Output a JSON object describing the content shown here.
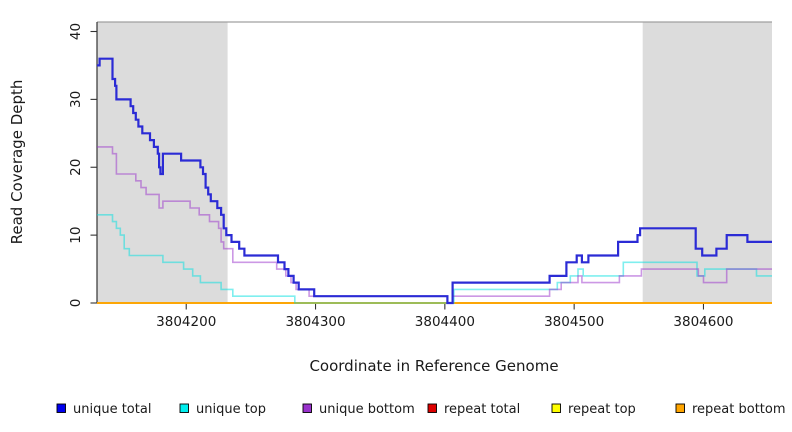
{
  "chart_data": {
    "type": "line",
    "step": true,
    "title": "",
    "xlabel": "Coordinate in Reference Genome",
    "ylabel": "Read Coverage Depth",
    "xlim": [
      3804131,
      3804653
    ],
    "ylim": [
      0,
      41.4
    ],
    "x_ticks": [
      3804200,
      3804300,
      3804400,
      3804500,
      3804600
    ],
    "y_ticks": [
      0,
      10,
      20,
      30,
      40
    ],
    "grid": false,
    "legend_position": "bottom",
    "colors": {
      "background": "#ffffff",
      "shaded_band": "#dcdcdc",
      "axis": "#333333",
      "top_border": "#8a8a8a"
    },
    "shaded_regions": [
      {
        "x0": 3804131,
        "x1": 3804232
      },
      {
        "x0": 3804553,
        "x1": 3804653
      }
    ],
    "series": [
      {
        "name": "unique total",
        "line_color": "#2b2bd5",
        "legend_color": "#0000ee",
        "line_width": 2.2,
        "opacity": 1,
        "points": [
          [
            3804131,
            35
          ],
          [
            3804133,
            36
          ],
          [
            3804143,
            33
          ],
          [
            3804145,
            32
          ],
          [
            3804146,
            30
          ],
          [
            3804157,
            29
          ],
          [
            3804159,
            28
          ],
          [
            3804161,
            27
          ],
          [
            3804163,
            26
          ],
          [
            3804166,
            25
          ],
          [
            3804172,
            24
          ],
          [
            3804175,
            23
          ],
          [
            3804178,
            22
          ],
          [
            3804179,
            20
          ],
          [
            3804180,
            19
          ],
          [
            3804182,
            22
          ],
          [
            3804196,
            21
          ],
          [
            3804211,
            20
          ],
          [
            3804213,
            19
          ],
          [
            3804215,
            17
          ],
          [
            3804217,
            16
          ],
          [
            3804219,
            15
          ],
          [
            3804224,
            14
          ],
          [
            3804227,
            13
          ],
          [
            3804229,
            11
          ],
          [
            3804231,
            10
          ],
          [
            3804235,
            9
          ],
          [
            3804241,
            8
          ],
          [
            3804245,
            7
          ],
          [
            3804271,
            6
          ],
          [
            3804276,
            5
          ],
          [
            3804279,
            4
          ],
          [
            3804283,
            3
          ],
          [
            3804287,
            2
          ],
          [
            3804299,
            1
          ],
          [
            3804402,
            0
          ],
          [
            3804406,
            3
          ],
          [
            3804481,
            4
          ],
          [
            3804494,
            6
          ],
          [
            3804502,
            7
          ],
          [
            3804506,
            6
          ],
          [
            3804511,
            7
          ],
          [
            3804534,
            9
          ],
          [
            3804549,
            10
          ],
          [
            3804551,
            11
          ],
          [
            3804594,
            8
          ],
          [
            3804599,
            7
          ],
          [
            3804610,
            8
          ],
          [
            3804618,
            10
          ],
          [
            3804634,
            9
          ],
          [
            3804653,
            9
          ]
        ]
      },
      {
        "name": "unique top",
        "line_color": "#00e0e0",
        "legend_color": "#00eeee",
        "line_width": 1.6,
        "opacity": 0.5,
        "points": [
          [
            3804131,
            13
          ],
          [
            3804143,
            12
          ],
          [
            3804146,
            11
          ],
          [
            3804149,
            10
          ],
          [
            3804152,
            8
          ],
          [
            3804156,
            7
          ],
          [
            3804182,
            6
          ],
          [
            3804198,
            5
          ],
          [
            3804205,
            4
          ],
          [
            3804211,
            3
          ],
          [
            3804227,
            2
          ],
          [
            3804236,
            1
          ],
          [
            3804284,
            0
          ],
          [
            3804407,
            2
          ],
          [
            3804487,
            3
          ],
          [
            3804497,
            4
          ],
          [
            3804503,
            5
          ],
          [
            3804507,
            4
          ],
          [
            3804538,
            6
          ],
          [
            3804595,
            4
          ],
          [
            3804601,
            5
          ],
          [
            3804641,
            4
          ],
          [
            3804653,
            4
          ]
        ]
      },
      {
        "name": "unique bottom",
        "line_color": "#9932cc",
        "legend_color": "#9932cc",
        "line_width": 1.6,
        "opacity": 0.5,
        "points": [
          [
            3804131,
            23
          ],
          [
            3804143,
            22
          ],
          [
            3804146,
            19
          ],
          [
            3804161,
            18
          ],
          [
            3804165,
            17
          ],
          [
            3804169,
            16
          ],
          [
            3804178,
            16
          ],
          [
            3804179,
            14
          ],
          [
            3804182,
            15
          ],
          [
            3804203,
            14
          ],
          [
            3804210,
            13
          ],
          [
            3804218,
            12
          ],
          [
            3804225,
            11
          ],
          [
            3804227,
            9
          ],
          [
            3804229,
            8
          ],
          [
            3804236,
            6
          ],
          [
            3804270,
            5
          ],
          [
            3804277,
            4
          ],
          [
            3804281,
            3
          ],
          [
            3804285,
            2
          ],
          [
            3804295,
            1
          ],
          [
            3804402,
            0
          ],
          [
            3804406,
            1
          ],
          [
            3804481,
            2
          ],
          [
            3804490,
            3
          ],
          [
            3804503,
            4
          ],
          [
            3804506,
            3
          ],
          [
            3804535,
            4
          ],
          [
            3804552,
            5
          ],
          [
            3804596,
            4
          ],
          [
            3804600,
            3
          ],
          [
            3804618,
            5
          ],
          [
            3804653,
            5
          ]
        ]
      },
      {
        "name": "repeat total",
        "line_color": "#dd0000",
        "legend_color": "#dd0000",
        "line_width": 1.5,
        "opacity": 1,
        "points": [
          [
            3804131,
            0
          ],
          [
            3804653,
            0
          ]
        ]
      },
      {
        "name": "repeat top",
        "line_color": "#ffff00",
        "legend_color": "#ffff00",
        "line_width": 1.5,
        "opacity": 1,
        "points": [
          [
            3804131,
            0
          ],
          [
            3804653,
            0
          ]
        ]
      },
      {
        "name": "repeat bottom",
        "line_color": "#ffa500",
        "legend_color": "#ffa500",
        "line_width": 1.8,
        "opacity": 1,
        "points": [
          [
            3804131,
            0
          ],
          [
            3804653,
            0
          ]
        ]
      }
    ]
  }
}
